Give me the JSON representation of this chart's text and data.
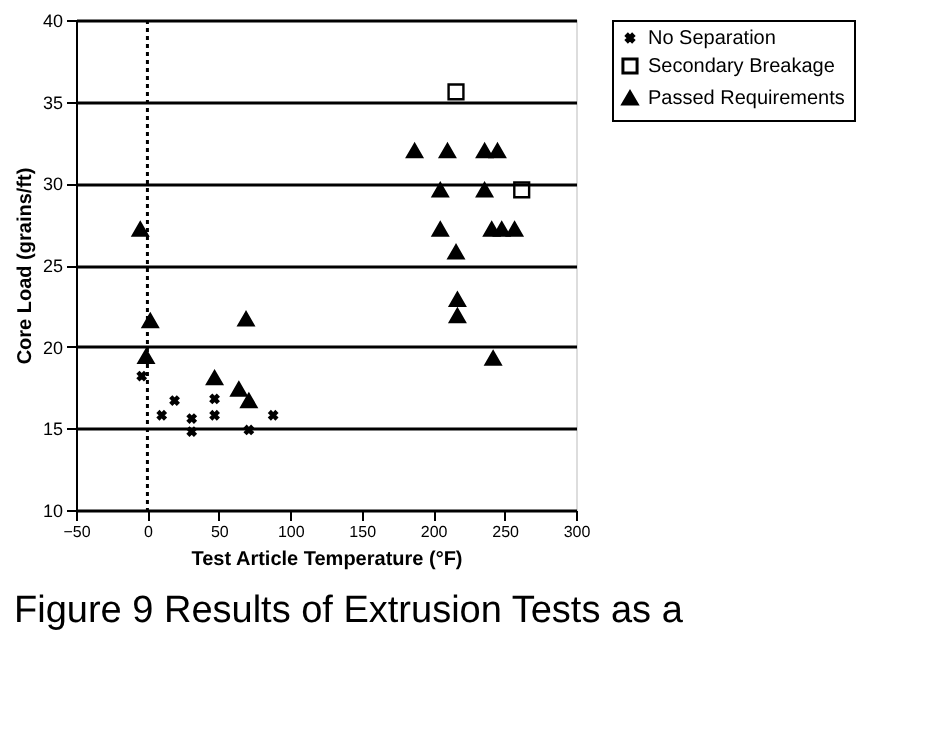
{
  "chart_data": {
    "type": "scatter",
    "xlabel": "Test Article Temperature (°F)",
    "ylabel": "Core Load (grains/ft)",
    "xlim": [
      -50,
      300
    ],
    "xticks": [
      -50,
      0,
      50,
      100,
      150,
      200,
      250,
      300
    ],
    "ylim": [
      10,
      40
    ],
    "yticks": [
      10,
      15,
      20,
      25,
      30,
      35,
      40
    ],
    "grid": "y",
    "legend": "top right",
    "ref_lines": [
      {
        "axis": "x",
        "value": 0,
        "line_style": "dotted",
        "color": "#000000"
      }
    ],
    "annotations": [
      "Figure 9    Results of Extrusion Tests as a"
    ],
    "series": [
      {
        "name": "No Separation",
        "color": "#000000",
        "marker": "cross",
        "x": [
          -4,
          10,
          19,
          31,
          31,
          47,
          47,
          71,
          88
        ],
        "values": [
          18.2,
          15.8,
          16.7,
          15.6,
          14.8,
          15.8,
          16.8,
          14.9,
          15.8
        ]
      },
      {
        "name": "Secondary Breakage",
        "color": "#000000",
        "marker": "square",
        "x": [
          216,
          262
        ],
        "values": [
          35.6,
          29.6
        ]
      },
      {
        "name": "Passed Requirements",
        "color": "#000000",
        "marker": "triangle",
        "x": [
          -5,
          2,
          -1,
          69,
          47,
          64,
          71,
          187,
          210,
          236,
          245,
          205,
          236,
          205,
          241,
          248,
          257,
          216,
          217,
          217,
          242
        ],
        "values": [
          27.2,
          21.6,
          19.4,
          21.7,
          18.1,
          17.4,
          16.7,
          32.0,
          32.0,
          32.0,
          32.0,
          29.6,
          29.6,
          27.2,
          27.2,
          27.2,
          27.2,
          25.8,
          22.9,
          21.9,
          19.3
        ]
      }
    ]
  }
}
